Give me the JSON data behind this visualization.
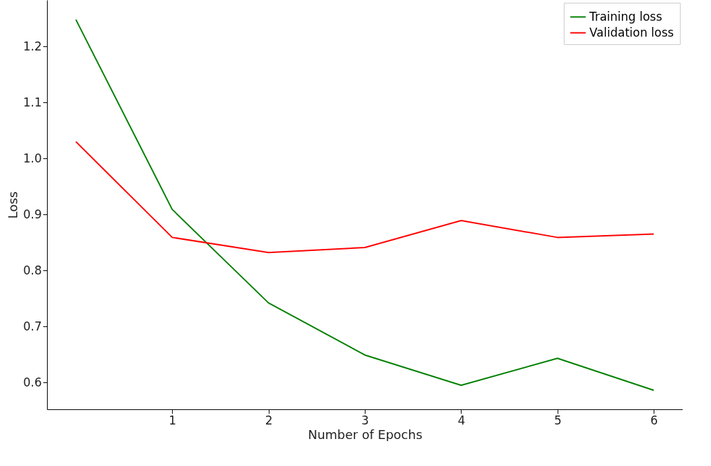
{
  "chart_data": {
    "type": "line",
    "xlabel": "Number of Epochs",
    "ylabel": "Loss",
    "x": [
      0,
      1,
      2,
      3,
      4,
      5,
      6
    ],
    "series": [
      {
        "name": "Training loss",
        "color": "#008000",
        "values": [
          1.248,
          0.909,
          0.742,
          0.649,
          0.595,
          0.643,
          0.586
        ]
      },
      {
        "name": "Validation loss",
        "color": "#ff0000",
        "values": [
          1.03,
          0.859,
          0.832,
          0.841,
          0.889,
          0.859,
          0.865
        ]
      }
    ],
    "xlim": [
      -0.3,
      6.3
    ],
    "xticks": [
      1,
      2,
      3,
      4,
      5,
      6
    ],
    "ylim": [
      0.552,
      1.283
    ],
    "yticks": [
      0.6,
      0.7,
      0.8,
      0.9,
      {
        "value": 1,
        "label": "1.0"
      },
      1.1,
      1.2
    ],
    "grid": false,
    "legend": "top right",
    "marker": "none",
    "line_style": "solid"
  }
}
